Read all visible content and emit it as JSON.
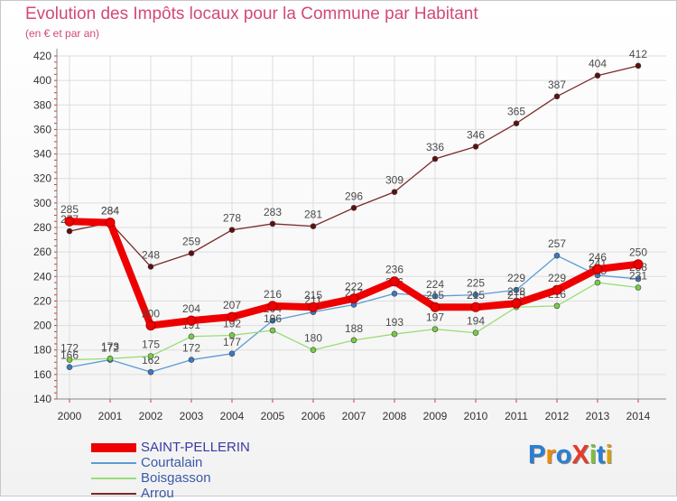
{
  "title": "Evolution des Impôts locaux pour la Commune par Habitant",
  "subtitle": "(en € et par an)",
  "brand": "ProXiti",
  "chart_data": {
    "type": "line",
    "title": "Evolution des Impôts locaux pour la Commune par Habitant",
    "ylabel": "(en € et par an)",
    "xlabel": "",
    "ylim": [
      140,
      420
    ],
    "yticks": [
      140,
      160,
      180,
      200,
      220,
      240,
      260,
      280,
      300,
      320,
      340,
      360,
      380,
      400,
      420
    ],
    "grid": true,
    "legend_position": "bottom-left",
    "x": [
      "2000",
      "2001",
      "2002",
      "2003",
      "2004",
      "2005",
      "2006",
      "2007",
      "2008",
      "2009",
      "2010",
      "2011",
      "2012",
      "2013",
      "2014"
    ],
    "series": [
      {
        "name": "Arrou",
        "color": "#7a2a2a",
        "marker": "#5c1010",
        "values": [
          277,
          284,
          248,
          259,
          278,
          283,
          281,
          296,
          309,
          336,
          346,
          365,
          387,
          404,
          412
        ],
        "labels": [
          "277",
          "284",
          "248",
          "259",
          "278",
          "283",
          "281",
          "296",
          "309",
          "336",
          "346",
          "365",
          "387",
          "404",
          "412"
        ]
      },
      {
        "name": "Courtalain",
        "color": "#5b9bd5",
        "marker": "#3a7ac0",
        "values": [
          166,
          172,
          162,
          172,
          177,
          204,
          211,
          217,
          226,
          224,
          225,
          229,
          257,
          241,
          238
        ],
        "labels": [
          "166",
          "172",
          "162",
          "172",
          "177",
          "204",
          "211",
          "217",
          "226",
          "224",
          "225",
          "229",
          "257",
          "241",
          "238"
        ]
      },
      {
        "name": "Boisgasson",
        "color": "#99dd77",
        "marker": "#77cc44",
        "values": [
          172,
          173,
          175,
          191,
          192,
          196,
          180,
          188,
          193,
          197,
          194,
          215,
          216,
          235,
          231
        ],
        "labels": [
          "172",
          "173",
          "175",
          "191",
          "192",
          "196",
          "180",
          "188",
          "193",
          "197",
          "194",
          "215",
          "216",
          "235",
          "231"
        ]
      },
      {
        "name": "SAINT-PELLERIN",
        "color": "#ee0000",
        "marker": "#ee0000",
        "values": [
          285,
          284,
          200,
          204,
          207,
          216,
          215,
          222,
          236,
          215,
          215,
          218,
          229,
          246,
          250
        ],
        "labels": [
          "285",
          "284",
          "200",
          "204",
          "207",
          "216",
          "215",
          "222",
          "236",
          "215",
          "215",
          "218",
          "229",
          "246",
          "250"
        ]
      }
    ],
    "legend": [
      {
        "name": "SAINT-PELLERIN",
        "color": "#ee0000",
        "text_color": "#3a3aa0"
      },
      {
        "name": "Courtalain",
        "color": "#5b9bd5",
        "text_color": "#3a5aa8"
      },
      {
        "name": "Boisgasson",
        "color": "#99dd77",
        "text_color": "#3a5aa8"
      },
      {
        "name": "Arrou",
        "color": "#7a2a2a",
        "text_color": "#3a5aa8"
      }
    ]
  }
}
